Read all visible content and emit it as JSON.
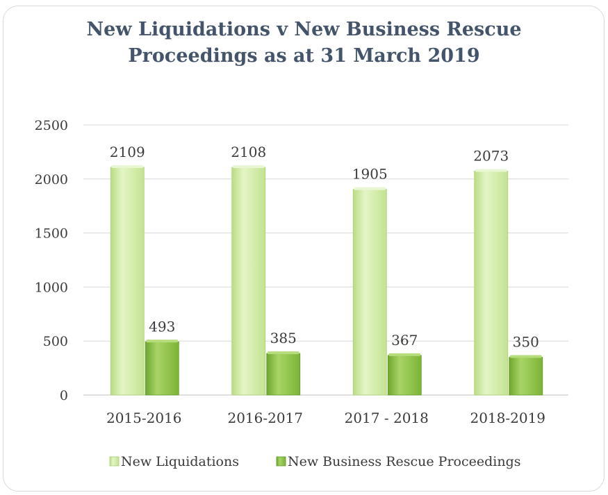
{
  "chart_data": {
    "type": "bar",
    "title_lines": [
      "New Liquidations v New Business Rescue",
      "Proceedings as at 31 March 2019"
    ],
    "categories": [
      "2015-2016",
      "2016-2017",
      "2017 - 2018",
      "2018-2019"
    ],
    "series": [
      {
        "name": "New Liquidations",
        "values": [
          2109,
          2108,
          1905,
          2073
        ],
        "color": "#cfeaa2"
      },
      {
        "name": "New Business Rescue Proceedings",
        "values": [
          493,
          385,
          367,
          350
        ],
        "color": "#8cc044"
      }
    ],
    "y_ticks": [
      "0",
      "500",
      "1000",
      "1500",
      "2000",
      "2500"
    ],
    "ylim": [
      0,
      2500
    ],
    "xlabel": "",
    "ylabel": "",
    "grid": true,
    "legend_position": "bottom",
    "data_labels": true
  }
}
